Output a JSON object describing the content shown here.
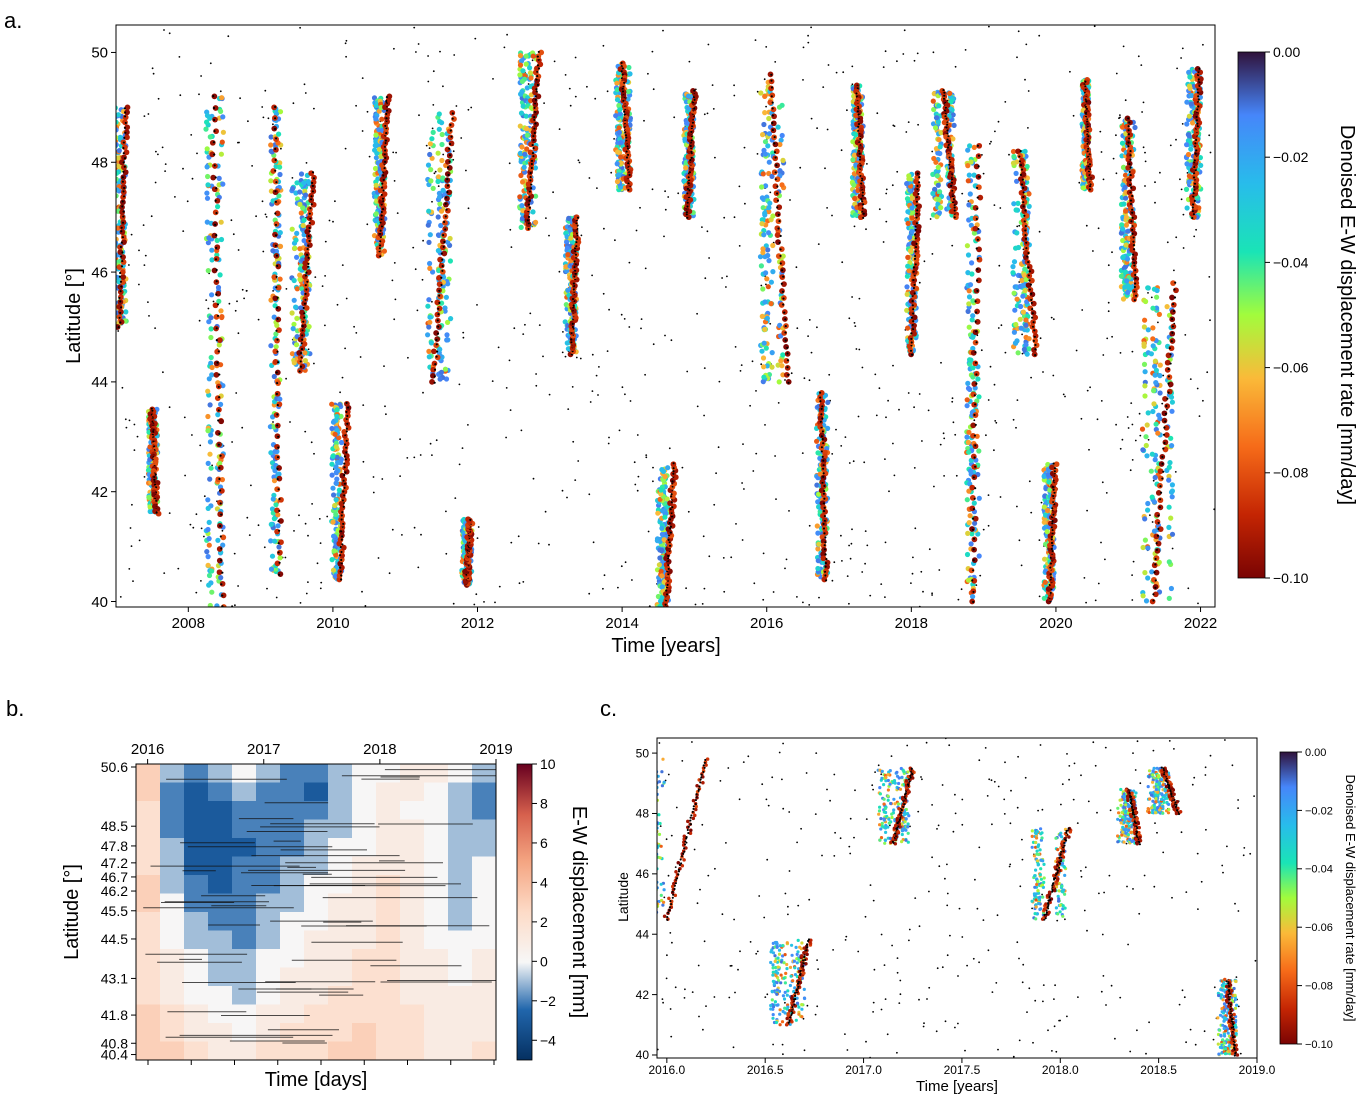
{
  "panels": {
    "a": {
      "letter": "a."
    },
    "b": {
      "letter": "b."
    },
    "c": {
      "letter": "c."
    }
  },
  "chart_data": [
    {
      "id": "a",
      "type": "scatter",
      "xlabel": "Time [years]",
      "ylabel": "Latitude [°]",
      "xlim": [
        2007.0,
        2022.2
      ],
      "ylim": [
        39.9,
        50.5
      ],
      "xticks": [
        2008,
        2010,
        2012,
        2014,
        2016,
        2018,
        2020,
        2022
      ],
      "yticks": [
        40,
        42,
        44,
        46,
        48,
        50
      ],
      "colorbar": {
        "label": "Denoised E-W displacement rate [mm/day]",
        "ticks": [
          "0.00",
          "−0.02",
          "−0.04",
          "−0.06",
          "−0.08",
          "−0.10"
        ],
        "colormap": "turbo_reversed"
      },
      "series": [
        {
          "name": "",
          "kind": "tremor",
          "color": "#000000"
        },
        {
          "name": "",
          "kind": "rate",
          "colormap": "turbo_reversed"
        }
      ],
      "events": [
        {
          "t": 2007.05,
          "lat0": 45.0,
          "lat1": 49.0,
          "dur": 0.08
        },
        {
          "t": 2007.5,
          "lat0": 41.6,
          "lat1": 43.5,
          "dur": 0.06
        },
        {
          "t": 2008.35,
          "lat0": 39.9,
          "lat1": 49.2,
          "dur": 0.12
        },
        {
          "t": 2009.2,
          "lat0": 40.5,
          "lat1": 49.0,
          "dur": 0.06
        },
        {
          "t": 2009.55,
          "lat0": 44.2,
          "lat1": 47.8,
          "dur": 0.18
        },
        {
          "t": 2010.1,
          "lat0": 40.4,
          "lat1": 43.6,
          "dur": 0.1
        },
        {
          "t": 2010.65,
          "lat0": 46.3,
          "lat1": 49.2,
          "dur": 0.1
        },
        {
          "t": 2011.4,
          "lat0": 44.0,
          "lat1": 48.9,
          "dur": 0.25
        },
        {
          "t": 2011.85,
          "lat0": 40.3,
          "lat1": 41.5,
          "dur": 0.05
        },
        {
          "t": 2012.7,
          "lat0": 46.8,
          "lat1": 50.0,
          "dur": 0.15
        },
        {
          "t": 2013.3,
          "lat0": 44.5,
          "lat1": 47.0,
          "dur": 0.08
        },
        {
          "t": 2014.0,
          "lat0": 47.5,
          "lat1": 49.8,
          "dur": 0.1
        },
        {
          "t": 2014.6,
          "lat0": 39.9,
          "lat1": 42.5,
          "dur": 0.12
        },
        {
          "t": 2014.9,
          "lat0": 47.0,
          "lat1": 49.3,
          "dur": 0.1
        },
        {
          "t": 2016.05,
          "lat0": 44.0,
          "lat1": 49.6,
          "dur": 0.25
        },
        {
          "t": 2016.75,
          "lat0": 40.4,
          "lat1": 43.8,
          "dur": 0.07
        },
        {
          "t": 2017.25,
          "lat0": 47.0,
          "lat1": 49.4,
          "dur": 0.08
        },
        {
          "t": 2018.0,
          "lat0": 44.5,
          "lat1": 47.8,
          "dur": 0.1
        },
        {
          "t": 2018.45,
          "lat0": 47.0,
          "lat1": 49.3,
          "dur": 0.15
        },
        {
          "t": 2018.85,
          "lat0": 40.0,
          "lat1": 48.3,
          "dur": 0.08
        },
        {
          "t": 2019.5,
          "lat0": 44.5,
          "lat1": 48.2,
          "dur": 0.22
        },
        {
          "t": 2019.92,
          "lat0": 40.0,
          "lat1": 42.5,
          "dur": 0.06
        },
        {
          "t": 2020.4,
          "lat0": 47.5,
          "lat1": 49.5,
          "dur": 0.08
        },
        {
          "t": 2021.0,
          "lat0": 45.5,
          "lat1": 48.8,
          "dur": 0.1
        },
        {
          "t": 2021.35,
          "lat0": 40.0,
          "lat1": 45.8,
          "dur": 0.3
        },
        {
          "t": 2021.9,
          "lat0": 47.0,
          "lat1": 49.7,
          "dur": 0.08
        }
      ]
    },
    {
      "id": "b",
      "type": "heatmap",
      "xlabel": "Time [days]",
      "ylabel": "Latitude [°]",
      "xticks_top": [
        "2016",
        "2017",
        "2018",
        "2019"
      ],
      "xlim_years": [
        2015.9,
        2019.0
      ],
      "yticks": [
        "50.6",
        "48.5",
        "47.8",
        "47.2",
        "46.7",
        "46.2",
        "45.5",
        "44.5",
        "43.1",
        "41.8",
        "40.8",
        "40.4"
      ],
      "colorbar": {
        "label": "E-W displacement [mm]",
        "ticks": [
          "10",
          "8",
          "6",
          "4",
          "2",
          "0",
          "−2",
          "−4"
        ],
        "range": [
          -5,
          10
        ],
        "colormap": "RdBu_reversed"
      },
      "matrix": [
        [
          3,
          -1,
          -2,
          -1,
          0,
          -1,
          -2,
          -2,
          -1,
          0,
          0,
          1,
          1,
          0,
          -1
        ],
        [
          3,
          -2,
          -3,
          -2,
          -1,
          -2,
          -2,
          -3,
          -1,
          0,
          1,
          1,
          0,
          -1,
          -2
        ],
        [
          2,
          -2,
          -3,
          -3,
          -2,
          -2,
          -2,
          -2,
          -1,
          0,
          1,
          0,
          0,
          -1,
          -2
        ],
        [
          2,
          -2,
          -3,
          -3,
          -2,
          -2,
          -2,
          -1,
          -1,
          0,
          1,
          1,
          0,
          -1,
          -1
        ],
        [
          2,
          -1,
          -3,
          -3,
          -3,
          -2,
          -2,
          -1,
          0,
          0,
          1,
          1,
          0,
          -1,
          -1
        ],
        [
          2,
          -1,
          -3,
          -3,
          -2,
          -2,
          -1,
          -1,
          0,
          1,
          1,
          1,
          0,
          -1,
          0
        ],
        [
          3,
          -1,
          -2,
          -3,
          -2,
          -2,
          -1,
          0,
          0,
          1,
          2,
          1,
          0,
          -1,
          0
        ],
        [
          3,
          0,
          -2,
          -2,
          -2,
          -1,
          -1,
          0,
          1,
          1,
          2,
          1,
          0,
          -1,
          0
        ],
        [
          2,
          0,
          -1,
          -2,
          -2,
          -1,
          0,
          0,
          1,
          1,
          2,
          1,
          0,
          -1,
          0
        ],
        [
          2,
          0,
          -1,
          -1,
          -2,
          -1,
          0,
          1,
          1,
          1,
          2,
          1,
          0,
          0,
          0
        ],
        [
          2,
          1,
          0,
          -1,
          -1,
          0,
          0,
          1,
          1,
          2,
          2,
          1,
          1,
          0,
          1
        ],
        [
          2,
          1,
          0,
          -1,
          -1,
          0,
          1,
          1,
          1,
          2,
          2,
          1,
          1,
          0,
          1
        ],
        [
          2,
          1,
          0,
          0,
          -1,
          0,
          1,
          1,
          2,
          2,
          2,
          1,
          1,
          1,
          1
        ],
        [
          3,
          2,
          1,
          0,
          0,
          1,
          1,
          2,
          2,
          2,
          2,
          2,
          1,
          1,
          1
        ],
        [
          3,
          2,
          1,
          1,
          0,
          1,
          2,
          2,
          2,
          3,
          2,
          2,
          1,
          1,
          1
        ],
        [
          3,
          3,
          2,
          1,
          1,
          2,
          2,
          2,
          3,
          3,
          2,
          2,
          1,
          1,
          2
        ]
      ]
    },
    {
      "id": "c",
      "type": "scatter",
      "xlabel": "Time [years]",
      "ylabel": "Latitude",
      "xlim": [
        2015.95,
        2019.0
      ],
      "ylim": [
        39.9,
        50.5
      ],
      "xticks": [
        "2016.0",
        "2016.5",
        "2017.0",
        "2017.5",
        "2018.0",
        "2018.5",
        "2019.0"
      ],
      "yticks": [
        40,
        42,
        44,
        46,
        48,
        50
      ],
      "colorbar": {
        "label": "Denoised E-W displacement rate [mm/day]",
        "ticks": [
          "0.00",
          "−0.02",
          "−0.04",
          "−0.06",
          "−0.08",
          "−0.10"
        ],
        "colormap": "turbo_reversed"
      },
      "series": [
        {
          "name": "",
          "kind": "tremor",
          "color": "#000000"
        },
        {
          "name": "",
          "kind": "rate",
          "colormap": "turbo_reversed"
        }
      ],
      "events": [
        {
          "t": 2016.0,
          "lat0": 44.5,
          "lat1": 49.8,
          "dur": 0.2
        },
        {
          "t": 2016.62,
          "lat0": 41.0,
          "lat1": 43.8,
          "dur": 0.1
        },
        {
          "t": 2017.15,
          "lat0": 47.0,
          "lat1": 49.5,
          "dur": 0.1
        },
        {
          "t": 2017.92,
          "lat0": 44.5,
          "lat1": 47.5,
          "dur": 0.12
        },
        {
          "t": 2018.35,
          "lat0": 47.0,
          "lat1": 48.8,
          "dur": 0.05
        },
        {
          "t": 2018.52,
          "lat0": 48.0,
          "lat1": 49.5,
          "dur": 0.08
        },
        {
          "t": 2018.85,
          "lat0": 40.0,
          "lat1": 42.5,
          "dur": 0.04
        }
      ]
    }
  ]
}
